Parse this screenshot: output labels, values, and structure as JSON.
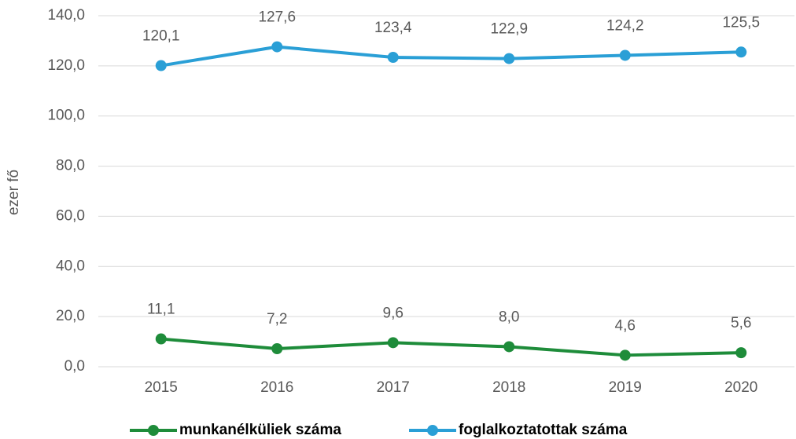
{
  "chart_data": {
    "type": "line",
    "y_label": "ezer fő",
    "categories": [
      "2015",
      "2016",
      "2017",
      "2018",
      "2019",
      "2020"
    ],
    "series": [
      {
        "name": "munkanélküliek száma",
        "color": "#1e8c3a",
        "values": [
          11.1,
          7.2,
          9.6,
          8.0,
          4.6,
          5.6
        ],
        "value_labels": [
          "11,1",
          "7,2",
          "9,6",
          "8,0",
          "4,6",
          "5,6"
        ]
      },
      {
        "name": "foglalkoztatottak száma",
        "color": "#2a9fd6",
        "values": [
          120.1,
          127.6,
          123.4,
          122.9,
          124.2,
          125.5
        ],
        "value_labels": [
          "120,1",
          "127,6",
          "123,4",
          "122,9",
          "124,2",
          "125,5"
        ]
      }
    ],
    "ylim": [
      0,
      140
    ],
    "yticks": [
      {
        "value": 0,
        "label": "0,0"
      },
      {
        "value": 20,
        "label": "20,0"
      },
      {
        "value": 40,
        "label": "40,0"
      },
      {
        "value": 60,
        "label": "60,0"
      },
      {
        "value": 80,
        "label": "80,0"
      },
      {
        "value": 100,
        "label": "100,0"
      },
      {
        "value": 120,
        "label": "120,0"
      },
      {
        "value": 140,
        "label": "140,0"
      }
    ],
    "grid": true,
    "legend": "bottom"
  }
}
